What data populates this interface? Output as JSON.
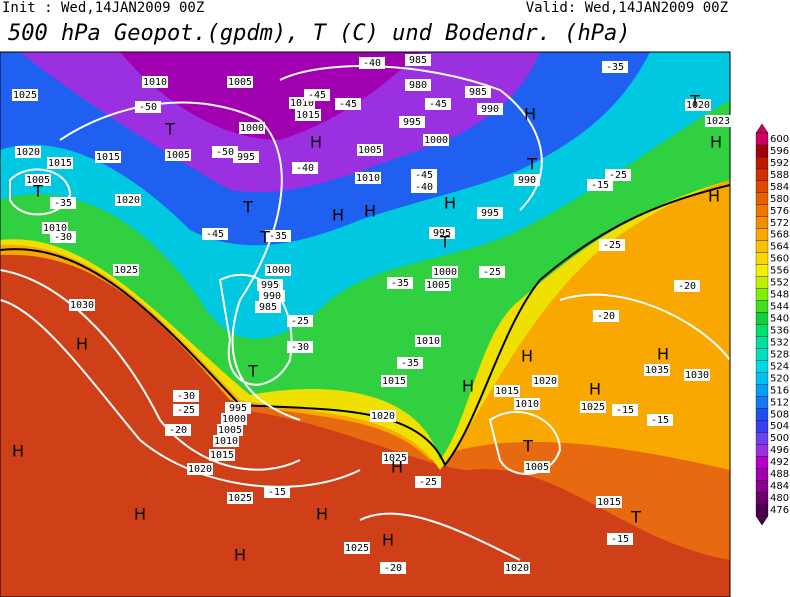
{
  "header": {
    "init": "Init : Wed,14JAN2009 00Z",
    "valid": "Valid: Wed,14JAN2009 00Z",
    "title": "500 hPa Geopot.(gpdm), T (C) und Bodendr. (hPa)"
  },
  "colorbar": {
    "levels": [
      476,
      480,
      484,
      488,
      492,
      496,
      500,
      504,
      508,
      512,
      516,
      520,
      524,
      528,
      532,
      536,
      540,
      544,
      548,
      552,
      556,
      560,
      564,
      568,
      572,
      576,
      580,
      584,
      588,
      592,
      596,
      600
    ],
    "colors": [
      "#4b0050",
      "#6a006e",
      "#8a0090",
      "#a000b0",
      "#b400c8",
      "#9b30e0",
      "#6a40f0",
      "#3c3cf0",
      "#2050f0",
      "#1478f0",
      "#00a0f0",
      "#00c0f0",
      "#00d8e8",
      "#00e0c0",
      "#00e0a0",
      "#00e070",
      "#10d040",
      "#40e020",
      "#80f000",
      "#c0f000",
      "#f0f000",
      "#f8d800",
      "#f8c000",
      "#f8a800",
      "#f09000",
      "#f07800",
      "#e86000",
      "#e04800",
      "#d03000",
      "#c01800",
      "#a00010",
      "#d00060"
    ]
  },
  "isobar_labels": [
    "1025",
    "1010",
    "1005",
    "1020",
    "1015",
    "1015",
    "1005",
    "1000",
    "995",
    "1005",
    "1020",
    "1010",
    "1025",
    "1030",
    "1000",
    "995",
    "990",
    "985",
    "1010",
    "1015",
    "1005",
    "1000",
    "995",
    "985",
    "980",
    "990",
    "985",
    "1010",
    "995",
    "995",
    "1000",
    "1005",
    "1010",
    "1015",
    "1020",
    "1015",
    "1010",
    "1020",
    "1025",
    "1035",
    "1030",
    "1005",
    "1015",
    "1025",
    "1025",
    "1020",
    "1025",
    "1020",
    "1015",
    "1010",
    "1005",
    "1000",
    "995",
    "1020",
    "1023",
    "990"
  ],
  "temperature_labels": [
    "-50",
    "-45",
    "-50",
    "-40",
    "-45",
    "-45",
    "-40",
    "-45",
    "-40",
    "-45",
    "-35",
    "-35",
    "-30",
    "-35",
    "-25",
    "-30",
    "-35",
    "-30",
    "-25",
    "-20",
    "-25",
    "-25",
    "-20",
    "-20",
    "-15",
    "-15",
    "-15",
    "-20",
    "-25",
    "-15",
    "-35",
    "-25",
    "-15"
  ],
  "pressure_centers": [
    "T",
    "T",
    "H",
    "T",
    "H",
    "H",
    "H",
    "T",
    "T",
    "H",
    "T",
    "H",
    "T",
    "H",
    "T",
    "H",
    "H",
    "H",
    "H",
    "T",
    "H",
    "H",
    "H",
    "H",
    "H",
    "H",
    "T",
    "H"
  ]
}
